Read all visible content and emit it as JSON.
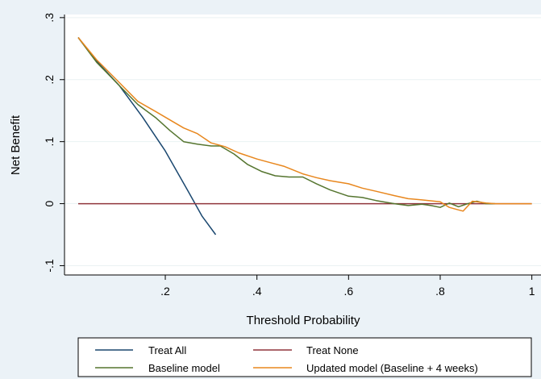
{
  "chart_data": {
    "type": "line",
    "title": "",
    "xlabel": "Threshold Probability",
    "ylabel": "Net Benefit",
    "xlim": [
      -0.02,
      1.02
    ],
    "ylim": [
      -0.115,
      0.305
    ],
    "x_ticks": [
      ".2",
      ".4",
      ".6",
      ".8",
      "1"
    ],
    "x_tick_values": [
      0.2,
      0.4,
      0.6,
      0.8,
      1.0
    ],
    "y_ticks": [
      "-.1",
      "0",
      ".1",
      ".2",
      ".3"
    ],
    "y_tick_values": [
      -0.1,
      0.0,
      0.1,
      0.2,
      0.3
    ],
    "grid": "horizontal",
    "legend_position": "bottom",
    "series": [
      {
        "name": "Treat All",
        "color": "#1a476f",
        "x": [
          0.01,
          0.05,
          0.1,
          0.15,
          0.2,
          0.25,
          0.28,
          0.31
        ],
        "y": [
          0.268,
          0.23,
          0.19,
          0.14,
          0.085,
          0.02,
          -0.02,
          -0.05
        ]
      },
      {
        "name": "Treat None",
        "color": "#90353b",
        "x": [
          0.01,
          1.0
        ],
        "y": [
          0.0,
          0.0
        ]
      },
      {
        "name": "Baseline model",
        "color": "#55752f",
        "x": [
          0.01,
          0.05,
          0.1,
          0.14,
          0.18,
          0.21,
          0.24,
          0.27,
          0.3,
          0.32,
          0.35,
          0.38,
          0.41,
          0.44,
          0.47,
          0.5,
          0.53,
          0.56,
          0.6,
          0.63,
          0.66,
          0.7,
          0.73,
          0.76,
          0.78,
          0.8,
          0.82,
          0.84,
          0.86,
          0.88,
          0.9,
          0.92
        ],
        "y": [
          0.268,
          0.228,
          0.19,
          0.16,
          0.138,
          0.118,
          0.1,
          0.096,
          0.093,
          0.093,
          0.08,
          0.063,
          0.052,
          0.045,
          0.043,
          0.043,
          0.032,
          0.022,
          0.012,
          0.01,
          0.005,
          0.0,
          -0.003,
          -0.001,
          -0.003,
          -0.006,
          0.001,
          -0.005,
          0.0,
          0.004,
          0.0,
          0.0
        ]
      },
      {
        "name": "Updated model (Baseline + 4 weeks)",
        "color": "#e8871e",
        "x": [
          0.01,
          0.05,
          0.1,
          0.14,
          0.18,
          0.21,
          0.24,
          0.27,
          0.3,
          0.33,
          0.36,
          0.4,
          0.43,
          0.46,
          0.5,
          0.53,
          0.56,
          0.6,
          0.63,
          0.66,
          0.7,
          0.73,
          0.76,
          0.8,
          0.82,
          0.84,
          0.85,
          0.87,
          0.88,
          0.9,
          0.92,
          1.0
        ],
        "y": [
          0.268,
          0.232,
          0.195,
          0.165,
          0.148,
          0.135,
          0.122,
          0.113,
          0.098,
          0.092,
          0.082,
          0.072,
          0.066,
          0.06,
          0.048,
          0.042,
          0.037,
          0.032,
          0.025,
          0.02,
          0.013,
          0.008,
          0.006,
          0.003,
          -0.006,
          -0.01,
          -0.012,
          0.004,
          0.003,
          0.001,
          0.0,
          0.0
        ]
      }
    ]
  }
}
